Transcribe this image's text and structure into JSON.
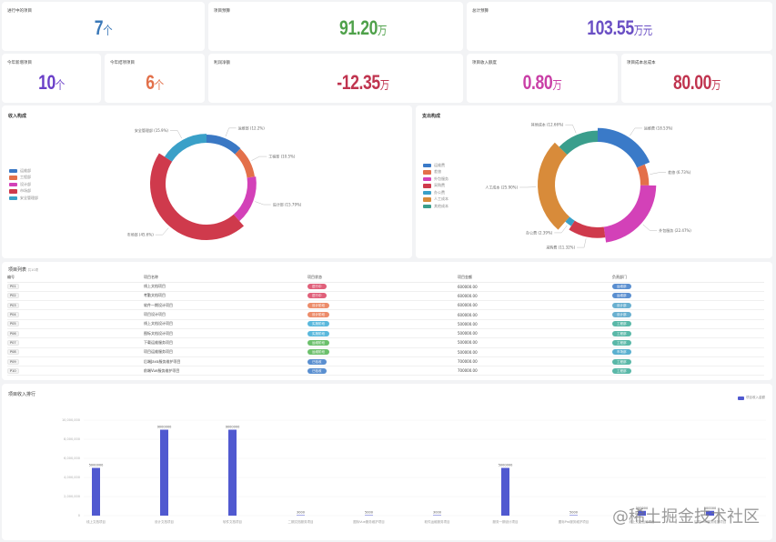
{
  "stats": {
    "ongoing_projects": {
      "label": "进行中的项目",
      "value": "7",
      "unit": "个",
      "color": "#3a78b8"
    },
    "project_budget": {
      "label": "项目预算",
      "value": "91.20",
      "unit": "万",
      "color": "#4fa14a"
    },
    "total_budget": {
      "label": "总计预算",
      "value": "103.55",
      "unit": "万元",
      "color": "#6a4fc4"
    },
    "new_projects_year": {
      "label": "今年新增项目",
      "value": "10",
      "unit": "个",
      "color": "#6a3fc8"
    },
    "finished_projects_year": {
      "label": "今年结项项目",
      "value": "6",
      "unit": "个",
      "color": "#e2704a"
    },
    "profit": {
      "label": "利润净额",
      "value": "-12.35",
      "unit": "万",
      "color": "#c0344f"
    },
    "income_month": {
      "label": "项目收入额度",
      "value": "0.80",
      "unit": "万",
      "color": "#c93fa6"
    },
    "project_total_cost": {
      "label": "项目成本总成本",
      "value": "80.00",
      "unit": "万",
      "color": "#c0344f"
    }
  },
  "income_pie": {
    "title": "收入构成",
    "legend": [
      "运维部",
      "工程部",
      "设计部",
      "市场部",
      "安全管理部"
    ],
    "colors": [
      "#3a78c4",
      "#e3704a",
      "#d341b8",
      "#cf3a4c",
      "#3aa0c8"
    ],
    "slices": [
      {
        "label": "运维部 (12.2%)",
        "value": 12.2
      },
      {
        "label": "工程部 (10.5%)",
        "value": 10.5
      },
      {
        "label": "设计部 (15.79%)",
        "value": 15.79
      },
      {
        "label": "市场部 (45.6%)",
        "value": 45.6
      },
      {
        "label": "安全管理部 (15.9%)",
        "value": 15.9
      }
    ]
  },
  "expense_pie": {
    "title": "支出构成",
    "legend": [
      "运维费",
      "差旅",
      "外包服务",
      "采购费",
      "办公费",
      "人工成本",
      "其他成本"
    ],
    "colors": [
      "#3a7ac8",
      "#e3704a",
      "#d341b8",
      "#cf3a4c",
      "#3aa0c8",
      "#d88b3a",
      "#3a9e8c"
    ],
    "slices": [
      {
        "label": "运维费 (18.53%)",
        "value": 18.53
      },
      {
        "label": "差旅 (6.73%)",
        "value": 6.73
      },
      {
        "label": "外包服务 (22.47%)",
        "value": 22.47
      },
      {
        "label": "采购费 (11.32%)",
        "value": 11.32
      },
      {
        "label": "办公费 (2.39%)",
        "value": 2.39
      },
      {
        "label": "人工成本 (25.90%)",
        "value": 25.9
      },
      {
        "label": "其他成本 (12.66%)",
        "value": 12.66
      }
    ]
  },
  "project_table": {
    "title": "项目列表",
    "subtitle": "共10项",
    "columns": [
      "编号",
      "项目名称",
      "项目状态",
      "项目金额",
      "负责部门"
    ],
    "rows": [
      {
        "id": "P01",
        "name": "线上文档项目",
        "status": "进行中",
        "status_color": "#e0607a",
        "amount": "600000.00",
        "dept": "运维部",
        "dept_color": "#5a8fd0"
      },
      {
        "id": "P02",
        "name": "考勤文档项目",
        "status": "进行中",
        "status_color": "#e0607a",
        "amount": "600000.00",
        "dept": "运维部",
        "dept_color": "#5a8fd0"
      },
      {
        "id": "P03",
        "name": "软件一期设计项目",
        "status": "设计阶段",
        "status_color": "#ec8c6a",
        "amount": "600000.00",
        "dept": "设计部",
        "dept_color": "#6ab0d0"
      },
      {
        "id": "P04",
        "name": "项目设计项目",
        "status": "设计阶段",
        "status_color": "#ec8c6a",
        "amount": "600000.00",
        "dept": "设计部",
        "dept_color": "#6ab0d0"
      },
      {
        "id": "P05",
        "name": "线上文档设计项目",
        "status": "实施阶段",
        "status_color": "#5ab8dc",
        "amount": "500000.00",
        "dept": "工程部",
        "dept_color": "#5ab8a8"
      },
      {
        "id": "P06",
        "name": "图标文档设计项目",
        "status": "实施阶段",
        "status_color": "#5ab8dc",
        "amount": "500000.00",
        "dept": "工程部",
        "dept_color": "#5ab8a8"
      },
      {
        "id": "P07",
        "name": "下载运维服务项目",
        "status": "运维阶段",
        "status_color": "#6cc06c",
        "amount": "500000.00",
        "dept": "工程部",
        "dept_color": "#5ab8a8"
      },
      {
        "id": "P08",
        "name": "项目运维服务项目",
        "status": "运维阶段",
        "status_color": "#6cc06c",
        "amount": "500000.00",
        "dept": "市场部",
        "dept_color": "#5ab0d0"
      },
      {
        "id": "P09",
        "name": "后端Java服务维护项目",
        "status": "已验收",
        "status_color": "#5a8fd0",
        "amount": "700000.00",
        "dept": "工程部",
        "dept_color": "#5ab8a8"
      },
      {
        "id": "P10",
        "name": "前端Vue服务维护项目",
        "status": "已验收",
        "status_color": "#5a8fd0",
        "amount": "700000.00",
        "dept": "工程部",
        "dept_color": "#5ab8a8"
      }
    ]
  },
  "chart_data": {
    "type": "bar",
    "title": "项目收入排行",
    "legend": [
      "项目收入金额"
    ],
    "legend_position": "top-right",
    "color": "#5059d0",
    "categories": [
      "线上文档项目",
      "设计文档项目",
      "软件文档项目",
      "二期文档服务项目",
      "图标Vue服务维护项目",
      "软件运维服务项目",
      "服务一期设计项目",
      "图标Pro服务维护项目",
      "线上文档运维项目",
      "后端Java服务维护项目"
    ],
    "values": [
      5000000,
      9000000,
      9000000,
      3000,
      5000,
      3000,
      5000000,
      5000,
      500000,
      500000
    ],
    "value_labels": [
      "5000000",
      "9000000",
      "9000000",
      "3000",
      "5000",
      "3000",
      "5000000",
      "5000",
      "500000",
      "500000"
    ],
    "yticks": [
      "0",
      "2,000,000",
      "4,000,000",
      "6,000,000",
      "8,000,000",
      "10,000,000"
    ],
    "ylim": [
      0,
      10000000
    ],
    "xlabel": "",
    "ylabel": "",
    "grid": true
  },
  "watermark": "@稀土掘金技术社区"
}
